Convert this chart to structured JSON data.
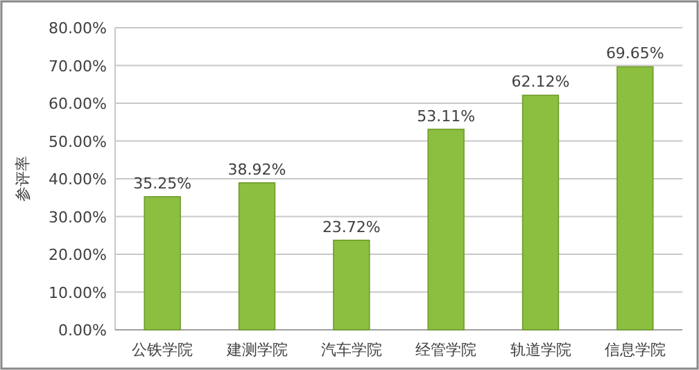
{
  "chart_data": {
    "type": "bar",
    "ylabel": "参评率",
    "categories": [
      "公铁学院",
      "建测学院",
      "汽车学院",
      "经管学院",
      "轨道学院",
      "信息学院"
    ],
    "values": [
      35.25,
      38.92,
      23.72,
      53.11,
      62.12,
      69.65
    ],
    "value_labels": [
      "35.25%",
      "38.92%",
      "23.72%",
      "53.11%",
      "62.12%",
      "69.65%"
    ],
    "color": "#8cbf3f",
    "ylim": [
      0,
      80
    ],
    "yticks": [
      {
        "value": 0,
        "label": "0.00%"
      },
      {
        "value": 10,
        "label": "10.00%"
      },
      {
        "value": 20,
        "label": "20.00%"
      },
      {
        "value": 30,
        "label": "30.00%"
      },
      {
        "value": 40,
        "label": "40.00%"
      },
      {
        "value": 50,
        "label": "50.00%"
      },
      {
        "value": 60,
        "label": "60.00%"
      },
      {
        "value": 70,
        "label": "70.00%"
      },
      {
        "value": 80,
        "label": "80.00%"
      }
    ],
    "grid": "y"
  }
}
